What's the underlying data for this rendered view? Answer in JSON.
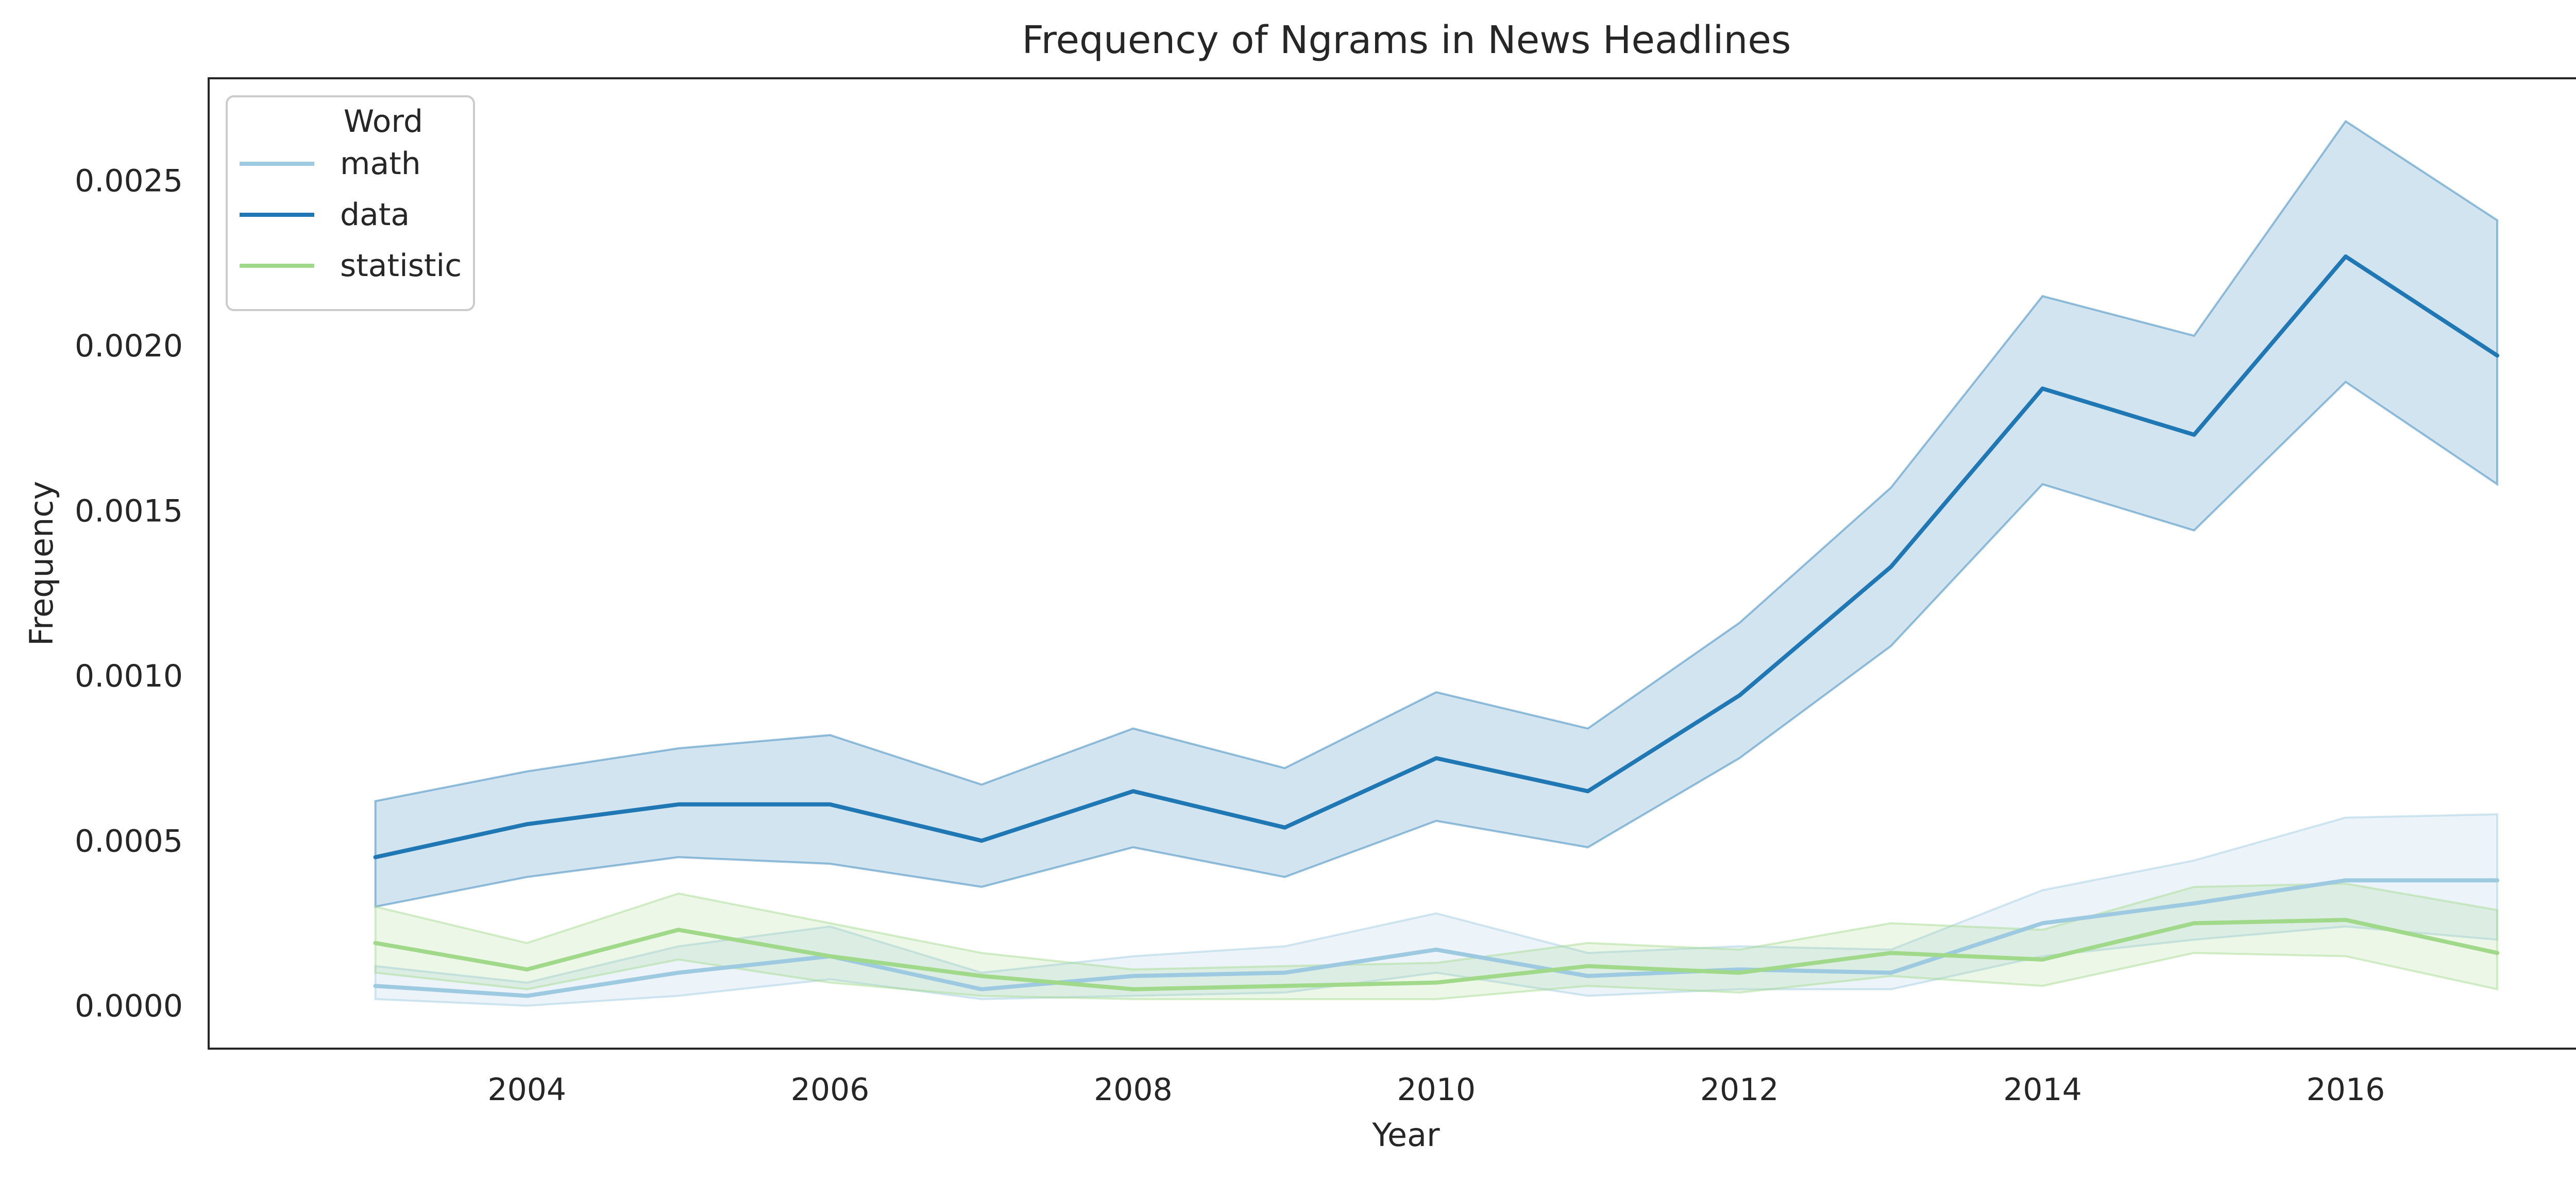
{
  "chart_data": {
    "type": "line",
    "title": "Frequency of Ngrams in News Headlines",
    "xlabel": "Year",
    "ylabel": "Frequency",
    "x": [
      2003,
      2004,
      2005,
      2006,
      2007,
      2008,
      2009,
      2010,
      2011,
      2012,
      2013,
      2014,
      2015,
      2016,
      2017
    ],
    "xlim": [
      2001.9,
      2017.7
    ],
    "ylim": [
      -0.00013,
      0.00281
    ],
    "xticks": [
      2004,
      2006,
      2008,
      2010,
      2012,
      2014,
      2016
    ],
    "xtick_labels": [
      "2004",
      "2006",
      "2008",
      "2010",
      "2012",
      "2014",
      "2016"
    ],
    "yticks": [
      0.0,
      0.0005,
      0.001,
      0.0015,
      0.002,
      0.0025
    ],
    "ytick_labels": [
      "0.0000",
      "0.0005",
      "0.0010",
      "0.0015",
      "0.0020",
      "0.0025"
    ],
    "grid": false,
    "legend": {
      "title": "Word",
      "placement": "top-left"
    },
    "series": [
      {
        "name": "math",
        "color": "#9ecae1",
        "values": [
          6e-05,
          3e-05,
          0.0001,
          0.00015,
          5e-05,
          9e-05,
          0.0001,
          0.00017,
          9e-05,
          0.00011,
          0.0001,
          0.00025,
          0.00031,
          0.00038,
          0.00038
        ],
        "lower": [
          2e-05,
          0.0,
          3e-05,
          8e-05,
          2e-05,
          3e-05,
          4e-05,
          0.0001,
          3e-05,
          5e-05,
          5e-05,
          0.00015,
          0.0002,
          0.00024,
          0.0002
        ],
        "upper": [
          0.00012,
          7e-05,
          0.00018,
          0.00024,
          0.0001,
          0.00015,
          0.00018,
          0.00028,
          0.00016,
          0.00018,
          0.00017,
          0.00035,
          0.00044,
          0.00057,
          0.00058
        ]
      },
      {
        "name": "data",
        "color": "#1f77b4",
        "values": [
          0.00045,
          0.00055,
          0.00061,
          0.00061,
          0.0005,
          0.00065,
          0.00054,
          0.00075,
          0.00065,
          0.00094,
          0.00133,
          0.00187,
          0.00173,
          0.00227,
          0.00197
        ],
        "lower": [
          0.0003,
          0.00039,
          0.00045,
          0.00043,
          0.00036,
          0.00048,
          0.00039,
          0.00056,
          0.00048,
          0.00075,
          0.00109,
          0.00158,
          0.00144,
          0.00189,
          0.00158
        ],
        "upper": [
          0.00062,
          0.00071,
          0.00078,
          0.00082,
          0.00067,
          0.00084,
          0.00072,
          0.00095,
          0.00084,
          0.00116,
          0.00157,
          0.00215,
          0.00203,
          0.00268,
          0.00238
        ]
      },
      {
        "name": "statistic",
        "color": "#a1d98a",
        "values": [
          0.00019,
          0.00011,
          0.00023,
          0.00015,
          9e-05,
          5e-05,
          6e-05,
          7e-05,
          0.00012,
          0.0001,
          0.00016,
          0.00014,
          0.00025,
          0.00026,
          0.00016
        ],
        "lower": [
          0.0001,
          5e-05,
          0.00014,
          7e-05,
          3e-05,
          2e-05,
          2e-05,
          2e-05,
          6e-05,
          4e-05,
          9e-05,
          6e-05,
          0.00016,
          0.00015,
          5e-05
        ],
        "upper": [
          0.0003,
          0.00019,
          0.00034,
          0.00025,
          0.00016,
          0.00011,
          0.00012,
          0.00013,
          0.00019,
          0.00017,
          0.00025,
          0.00023,
          0.00036,
          0.00037,
          0.00029
        ]
      }
    ]
  }
}
